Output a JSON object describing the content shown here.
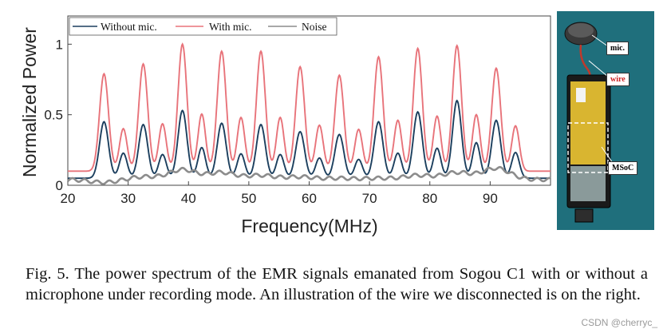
{
  "chart_data": {
    "type": "line",
    "xlabel": "Frequency(MHz)",
    "ylabel": "Normalized Power",
    "xlim": [
      20,
      100
    ],
    "ylim": [
      0,
      1.2
    ],
    "xticks": [
      "20",
      "30",
      "40",
      "50",
      "60",
      "70",
      "80",
      "90"
    ],
    "yticks": [
      "0",
      "0.5",
      "1"
    ],
    "legend_position": "top-left",
    "peaks": [
      26,
      32.5,
      39,
      45.5,
      52,
      58.5,
      65,
      71.5,
      78,
      84.5,
      91
    ],
    "series": [
      {
        "name": "Without mic.",
        "color": "#1c3f5e",
        "peak_heights": [
          0.45,
          0.43,
          0.53,
          0.44,
          0.43,
          0.38,
          0.36,
          0.45,
          0.52,
          0.6,
          0.46
        ],
        "baseline": 0.05
      },
      {
        "name": "With mic.",
        "color": "#e8737a",
        "peak_heights": [
          0.79,
          0.86,
          1.0,
          0.95,
          0.95,
          0.84,
          0.78,
          0.91,
          0.97,
          0.99,
          0.83
        ],
        "baseline": 0.1
      },
      {
        "name": "Noise",
        "color": "#8c8c8c",
        "peak_heights": [
          0.02,
          0.06,
          0.11,
          0.09,
          0.07,
          0.06,
          0.05,
          0.05,
          0.07,
          0.09,
          0.12
        ],
        "baseline": 0.04
      }
    ]
  },
  "photo": {
    "labels": {
      "mic": "mic.",
      "wire": "wire",
      "msoc": "MSoC"
    },
    "wire_label_color": "#cc2222"
  },
  "caption": {
    "text": "Fig. 5.  The power spectrum of the EMR signals emanated from Sogou C1 with or without a microphone under recording mode. An illustration of the wire we disconnected is on the right."
  },
  "watermark": "CSDN @cherryc_"
}
